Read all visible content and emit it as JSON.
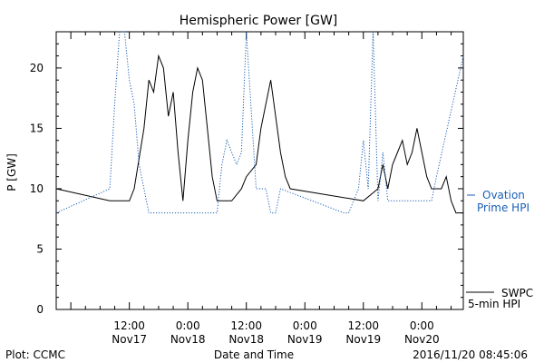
{
  "chart_data": {
    "type": "line",
    "title": "Hemispheric Power [GW]",
    "ylabel": "P [GW]",
    "xlabel": "Date and Time",
    "ylim": [
      0,
      23
    ],
    "xlim": [
      "2016-11-16 21:00",
      "2016-11-20 08:30"
    ],
    "yticks": [
      0,
      5,
      10,
      15,
      20
    ],
    "xticks": [
      {
        "top": "12:00",
        "bottom": "Nov17",
        "t": "2016-11-17 12:00"
      },
      {
        "top": "0:00",
        "bottom": "Nov18",
        "t": "2016-11-18 00:00"
      },
      {
        "top": "12:00",
        "bottom": "Nov18",
        "t": "2016-11-18 12:00"
      },
      {
        "top": "0:00",
        "bottom": "Nov19",
        "t": "2016-11-19 00:00"
      },
      {
        "top": "12:00",
        "bottom": "Nov19",
        "t": "2016-11-19 12:00"
      },
      {
        "top": "0:00",
        "bottom": "Nov20",
        "t": "2016-11-20 00:00"
      }
    ],
    "series": [
      {
        "name": "SWPC 5-min HPI",
        "style": "solid",
        "color": "#000000",
        "points": [
          [
            "2016-11-16 21:00",
            10
          ],
          [
            "2016-11-17 08:00",
            9
          ],
          [
            "2016-11-17 10:00",
            9
          ],
          [
            "2016-11-17 12:00",
            9
          ],
          [
            "2016-11-17 13:00",
            10
          ],
          [
            "2016-11-17 15:00",
            15
          ],
          [
            "2016-11-17 16:00",
            19
          ],
          [
            "2016-11-17 17:00",
            18
          ],
          [
            "2016-11-17 18:00",
            21
          ],
          [
            "2016-11-17 19:00",
            20
          ],
          [
            "2016-11-17 20:00",
            16
          ],
          [
            "2016-11-17 21:00",
            18
          ],
          [
            "2016-11-17 22:00",
            13
          ],
          [
            "2016-11-17 23:00",
            9
          ],
          [
            "2016-11-18 00:00",
            14
          ],
          [
            "2016-11-18 01:00",
            18
          ],
          [
            "2016-11-18 02:00",
            20
          ],
          [
            "2016-11-18 03:00",
            19
          ],
          [
            "2016-11-18 05:00",
            11
          ],
          [
            "2016-11-18 06:00",
            9
          ],
          [
            "2016-11-18 09:00",
            9
          ],
          [
            "2016-11-18 11:00",
            10
          ],
          [
            "2016-11-18 12:00",
            11
          ],
          [
            "2016-11-18 14:00",
            12
          ],
          [
            "2016-11-18 15:00",
            15
          ],
          [
            "2016-11-18 17:00",
            19
          ],
          [
            "2016-11-18 18:00",
            16
          ],
          [
            "2016-11-18 19:00",
            13
          ],
          [
            "2016-11-18 20:00",
            11
          ],
          [
            "2016-11-18 21:00",
            10
          ],
          [
            "2016-11-19 12:00",
            9
          ],
          [
            "2016-11-19 15:00",
            10
          ],
          [
            "2016-11-19 16:00",
            12
          ],
          [
            "2016-11-19 17:00",
            10
          ],
          [
            "2016-11-19 18:00",
            12
          ],
          [
            "2016-11-19 19:00",
            13
          ],
          [
            "2016-11-19 20:00",
            14
          ],
          [
            "2016-11-19 21:00",
            12
          ],
          [
            "2016-11-19 22:00",
            13
          ],
          [
            "2016-11-19 23:00",
            15
          ],
          [
            "2016-11-20 00:00",
            13
          ],
          [
            "2016-11-20 01:00",
            11
          ],
          [
            "2016-11-20 02:00",
            10
          ],
          [
            "2016-11-20 04:00",
            10
          ],
          [
            "2016-11-20 05:00",
            11
          ],
          [
            "2016-11-20 06:00",
            9
          ],
          [
            "2016-11-20 07:00",
            8
          ],
          [
            "2016-11-20 08:30",
            8
          ]
        ]
      },
      {
        "name": "Ovation Prime HPI",
        "style": "dotted",
        "color": "#1a5fb4",
        "points": [
          [
            "2016-11-16 21:00",
            8
          ],
          [
            "2016-11-17 08:00",
            10
          ],
          [
            "2016-11-17 09:00",
            17
          ],
          [
            "2016-11-17 10:00",
            23
          ],
          [
            "2016-11-17 11:00",
            23
          ],
          [
            "2016-11-17 12:00",
            19
          ],
          [
            "2016-11-17 13:00",
            17
          ],
          [
            "2016-11-17 14:00",
            12
          ],
          [
            "2016-11-17 15:00",
            10
          ],
          [
            "2016-11-17 16:00",
            8
          ],
          [
            "2016-11-18 06:00",
            8
          ],
          [
            "2016-11-18 07:00",
            12
          ],
          [
            "2016-11-18 08:00",
            14
          ],
          [
            "2016-11-18 10:00",
            12
          ],
          [
            "2016-11-18 11:00",
            13
          ],
          [
            "2016-11-18 12:00",
            23
          ],
          [
            "2016-11-18 14:00",
            10
          ],
          [
            "2016-11-18 16:00",
            10
          ],
          [
            "2016-11-18 17:00",
            8
          ],
          [
            "2016-11-18 18:00",
            8
          ],
          [
            "2016-11-18 19:00",
            10
          ],
          [
            "2016-11-19 08:00",
            8
          ],
          [
            "2016-11-19 09:00",
            8
          ],
          [
            "2016-11-19 10:00",
            9
          ],
          [
            "2016-11-19 11:00",
            10
          ],
          [
            "2016-11-19 12:00",
            14
          ],
          [
            "2016-11-19 13:00",
            10
          ],
          [
            "2016-11-19 14:00",
            23
          ],
          [
            "2016-11-19 15:00",
            9
          ],
          [
            "2016-11-19 16:00",
            13
          ],
          [
            "2016-11-19 17:00",
            9
          ],
          [
            "2016-11-20 02:00",
            9
          ],
          [
            "2016-11-20 03:00",
            11
          ],
          [
            "2016-11-20 08:30",
            21
          ]
        ]
      }
    ],
    "legend": [
      {
        "series": "Ovation Prime HPI",
        "lines": [
          "Ovation",
          "Prime HPI"
        ],
        "placement": "right-middle"
      },
      {
        "series": "SWPC 5-min HPI",
        "lines": [
          "SWPC",
          "5-min HPI"
        ],
        "placement": "right-bottom"
      }
    ],
    "footer": {
      "left": "Plot: CCMC",
      "right": "2016/11/20 08:45:06"
    }
  }
}
